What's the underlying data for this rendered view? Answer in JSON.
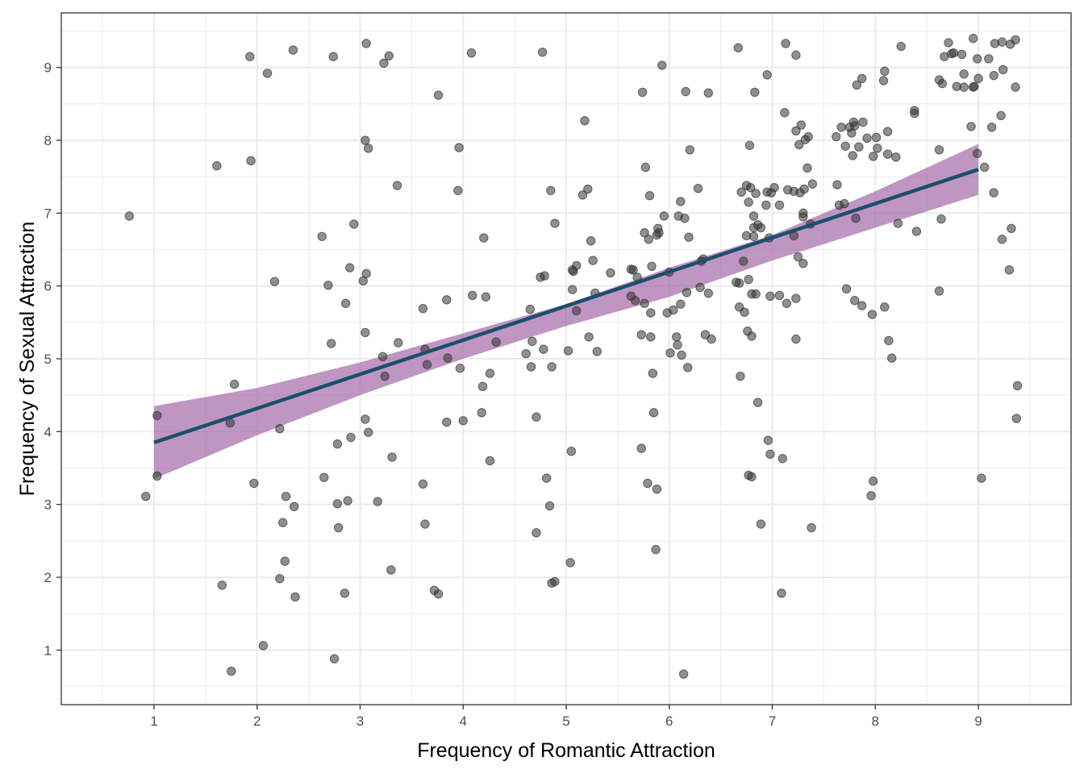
{
  "chart_data": {
    "type": "scatter",
    "title": "",
    "xlabel": "Frequency of Romantic Attraction",
    "ylabel": "Frequency of Sexual Attraction",
    "xlim": [
      0.1,
      9.9
    ],
    "ylim": [
      0.25,
      9.75
    ],
    "x_ticks": [
      1,
      2,
      3,
      4,
      5,
      6,
      7,
      8,
      9
    ],
    "y_ticks": [
      1,
      2,
      3,
      4,
      5,
      6,
      7,
      8,
      9
    ],
    "x_tick_labels": [
      "1",
      "2",
      "3",
      "4",
      "5",
      "6",
      "7",
      "8",
      "9"
    ],
    "y_tick_labels": [
      "1",
      "2",
      "3",
      "4",
      "5",
      "6",
      "7",
      "8",
      "9"
    ],
    "grid": true,
    "legend": "none",
    "colors": {
      "points": "#333333",
      "fit_line": "#1b4f6b",
      "confidence_band": "#a46aa8",
      "grid": "#ebebeb",
      "panel_border": "#333333"
    },
    "fit_line": {
      "x": [
        1,
        9
      ],
      "y": [
        3.85,
        7.6
      ]
    },
    "confidence_band": {
      "x": [
        1,
        2,
        3,
        4,
        5,
        6,
        7,
        8,
        9
      ],
      "lower": [
        3.35,
        3.95,
        4.5,
        5.0,
        5.45,
        5.85,
        6.35,
        6.8,
        7.25
      ],
      "upper": [
        4.35,
        4.6,
        4.95,
        5.35,
        5.75,
        6.25,
        6.7,
        7.3,
        7.95
      ]
    },
    "points": [
      [
        0.76,
        6.96
      ],
      [
        0.92,
        3.11
      ],
      [
        1.03,
        4.22
      ],
      [
        1.03,
        3.39
      ],
      [
        1.61,
        7.65
      ],
      [
        1.66,
        1.89
      ],
      [
        1.74,
        4.12
      ],
      [
        1.75,
        0.71
      ],
      [
        1.78,
        4.65
      ],
      [
        1.93,
        9.15
      ],
      [
        1.94,
        7.72
      ],
      [
        1.97,
        3.29
      ],
      [
        2.06,
        1.06
      ],
      [
        2.1,
        8.92
      ],
      [
        2.17,
        6.06
      ],
      [
        2.22,
        4.04
      ],
      [
        2.22,
        1.98
      ],
      [
        2.25,
        2.75
      ],
      [
        2.27,
        2.22
      ],
      [
        2.28,
        3.11
      ],
      [
        2.35,
        9.24
      ],
      [
        2.36,
        2.97
      ],
      [
        2.37,
        1.73
      ],
      [
        2.63,
        6.68
      ],
      [
        2.65,
        3.37
      ],
      [
        2.69,
        6.01
      ],
      [
        2.72,
        5.21
      ],
      [
        2.74,
        9.15
      ],
      [
        2.75,
        0.88
      ],
      [
        2.78,
        3.01
      ],
      [
        2.78,
        3.83
      ],
      [
        2.79,
        2.68
      ],
      [
        2.85,
        1.78
      ],
      [
        2.86,
        5.76
      ],
      [
        2.88,
        3.05
      ],
      [
        2.9,
        6.25
      ],
      [
        2.91,
        3.92
      ],
      [
        2.94,
        6.85
      ],
      [
        3.03,
        6.07
      ],
      [
        3.05,
        8.0
      ],
      [
        3.05,
        5.36
      ],
      [
        3.05,
        4.17
      ],
      [
        3.06,
        6.17
      ],
      [
        3.06,
        9.33
      ],
      [
        3.08,
        7.89
      ],
      [
        3.08,
        3.99
      ],
      [
        3.17,
        3.04
      ],
      [
        3.22,
        5.03
      ],
      [
        3.23,
        9.06
      ],
      [
        3.24,
        4.76
      ],
      [
        3.28,
        9.16
      ],
      [
        3.3,
        2.1
      ],
      [
        3.31,
        3.65
      ],
      [
        3.36,
        7.38
      ],
      [
        3.37,
        5.22
      ],
      [
        3.61,
        5.69
      ],
      [
        3.61,
        3.28
      ],
      [
        3.63,
        5.13
      ],
      [
        3.63,
        2.73
      ],
      [
        3.65,
        4.92
      ],
      [
        3.72,
        1.82
      ],
      [
        3.76,
        8.62
      ],
      [
        3.76,
        1.77
      ],
      [
        3.84,
        5.81
      ],
      [
        3.84,
        4.13
      ],
      [
        3.85,
        5.01
      ],
      [
        3.95,
        7.31
      ],
      [
        3.96,
        7.9
      ],
      [
        3.97,
        4.87
      ],
      [
        4.0,
        4.15
      ],
      [
        4.08,
        9.2
      ],
      [
        4.09,
        5.87
      ],
      [
        4.18,
        4.26
      ],
      [
        4.19,
        4.62
      ],
      [
        4.2,
        6.66
      ],
      [
        4.22,
        5.85
      ],
      [
        4.26,
        3.6
      ],
      [
        4.26,
        4.8
      ],
      [
        4.32,
        5.23
      ],
      [
        4.61,
        5.07
      ],
      [
        4.65,
        5.68
      ],
      [
        4.66,
        4.89
      ],
      [
        4.67,
        5.24
      ],
      [
        4.71,
        2.61
      ],
      [
        4.71,
        4.2
      ],
      [
        4.75,
        6.12
      ],
      [
        4.77,
        9.21
      ],
      [
        4.78,
        5.13
      ],
      [
        4.79,
        6.14
      ],
      [
        4.81,
        3.36
      ],
      [
        4.84,
        2.98
      ],
      [
        4.85,
        7.31
      ],
      [
        4.86,
        4.89
      ],
      [
        4.86,
        1.92
      ],
      [
        4.89,
        6.86
      ],
      [
        4.89,
        1.94
      ],
      [
        5.02,
        5.11
      ],
      [
        5.04,
        2.2
      ],
      [
        5.05,
        3.73
      ],
      [
        5.06,
        5.95
      ],
      [
        5.06,
        6.22
      ],
      [
        5.07,
        6.2
      ],
      [
        5.1,
        5.66
      ],
      [
        5.1,
        6.28
      ],
      [
        5.16,
        7.25
      ],
      [
        5.18,
        8.27
      ],
      [
        5.21,
        7.33
      ],
      [
        5.22,
        5.3
      ],
      [
        5.24,
        6.62
      ],
      [
        5.26,
        6.35
      ],
      [
        5.28,
        5.9
      ],
      [
        5.3,
        5.1
      ],
      [
        5.43,
        6.18
      ],
      [
        5.63,
        5.86
      ],
      [
        5.63,
        6.23
      ],
      [
        5.65,
        6.22
      ],
      [
        5.67,
        5.8
      ],
      [
        5.69,
        6.12
      ],
      [
        5.73,
        3.77
      ],
      [
        5.73,
        5.33
      ],
      [
        5.74,
        8.66
      ],
      [
        5.76,
        5.76
      ],
      [
        5.76,
        6.73
      ],
      [
        5.77,
        7.63
      ],
      [
        5.79,
        3.29
      ],
      [
        5.8,
        6.64
      ],
      [
        5.81,
        7.24
      ],
      [
        5.82,
        5.63
      ],
      [
        5.82,
        5.3
      ],
      [
        5.83,
        6.27
      ],
      [
        5.84,
        4.8
      ],
      [
        5.85,
        4.26
      ],
      [
        5.87,
        2.38
      ],
      [
        5.88,
        3.21
      ],
      [
        5.88,
        6.7
      ],
      [
        5.89,
        6.79
      ],
      [
        5.9,
        6.73
      ],
      [
        5.93,
        9.03
      ],
      [
        5.95,
        6.96
      ],
      [
        5.98,
        5.63
      ],
      [
        6.0,
        6.19
      ],
      [
        6.01,
        5.08
      ],
      [
        6.04,
        5.67
      ],
      [
        6.07,
        5.3
      ],
      [
        6.08,
        5.19
      ],
      [
        6.09,
        6.96
      ],
      [
        6.11,
        5.75
      ],
      [
        6.11,
        7.16
      ],
      [
        6.12,
        5.05
      ],
      [
        6.14,
        0.67
      ],
      [
        6.15,
        6.93
      ],
      [
        6.16,
        8.67
      ],
      [
        6.17,
        5.91
      ],
      [
        6.18,
        4.88
      ],
      [
        6.19,
        6.67
      ],
      [
        6.2,
        7.87
      ],
      [
        6.28,
        7.34
      ],
      [
        6.3,
        5.98
      ],
      [
        6.31,
        6.34
      ],
      [
        6.33,
        6.37
      ],
      [
        6.35,
        5.33
      ],
      [
        6.38,
        8.65
      ],
      [
        6.38,
        5.9
      ],
      [
        6.41,
        5.27
      ],
      [
        6.65,
        6.05
      ],
      [
        6.67,
        9.27
      ],
      [
        6.68,
        6.04
      ],
      [
        6.68,
        5.71
      ],
      [
        6.69,
        4.76
      ],
      [
        6.7,
        7.29
      ],
      [
        6.72,
        6.34
      ],
      [
        6.73,
        5.64
      ],
      [
        6.75,
        7.38
      ],
      [
        6.75,
        6.69
      ],
      [
        6.76,
        5.38
      ],
      [
        6.77,
        7.15
      ],
      [
        6.77,
        3.4
      ],
      [
        6.77,
        6.09
      ],
      [
        6.78,
        7.93
      ],
      [
        6.79,
        7.35
      ],
      [
        6.8,
        5.89
      ],
      [
        6.8,
        3.38
      ],
      [
        6.8,
        5.31
      ],
      [
        6.82,
        6.68
      ],
      [
        6.82,
        6.8
      ],
      [
        6.82,
        6.96
      ],
      [
        6.83,
        8.66
      ],
      [
        6.84,
        5.89
      ],
      [
        6.84,
        7.27
      ],
      [
        6.86,
        4.4
      ],
      [
        6.86,
        6.84
      ],
      [
        6.89,
        6.8
      ],
      [
        6.89,
        2.73
      ],
      [
        6.94,
        7.11
      ],
      [
        6.95,
        8.9
      ],
      [
        6.95,
        7.29
      ],
      [
        6.96,
        3.88
      ],
      [
        6.97,
        6.66
      ],
      [
        6.98,
        5.86
      ],
      [
        6.98,
        3.69
      ],
      [
        6.99,
        7.28
      ],
      [
        7.02,
        7.35
      ],
      [
        7.07,
        7.11
      ],
      [
        7.07,
        5.87
      ],
      [
        7.09,
        1.78
      ],
      [
        7.1,
        3.63
      ],
      [
        7.12,
        8.38
      ],
      [
        7.13,
        9.33
      ],
      [
        7.14,
        5.76
      ],
      [
        7.15,
        7.32
      ],
      [
        7.21,
        7.3
      ],
      [
        7.21,
        6.69
      ],
      [
        7.23,
        9.17
      ],
      [
        7.23,
        5.83
      ],
      [
        7.23,
        5.27
      ],
      [
        7.23,
        8.13
      ],
      [
        7.25,
        6.4
      ],
      [
        7.26,
        7.94
      ],
      [
        7.27,
        7.28
      ],
      [
        7.28,
        8.21
      ],
      [
        7.3,
        6.95
      ],
      [
        7.3,
        6.31
      ],
      [
        7.3,
        7.0
      ],
      [
        7.31,
        7.33
      ],
      [
        7.32,
        8.01
      ],
      [
        7.34,
        7.62
      ],
      [
        7.35,
        8.05
      ],
      [
        7.37,
        6.85
      ],
      [
        7.38,
        2.68
      ],
      [
        7.39,
        7.4
      ],
      [
        7.62,
        8.05
      ],
      [
        7.63,
        7.39
      ],
      [
        7.65,
        7.11
      ],
      [
        7.67,
        8.18
      ],
      [
        7.7,
        7.13
      ],
      [
        7.71,
        7.92
      ],
      [
        7.72,
        5.96
      ],
      [
        7.75,
        8.18
      ],
      [
        7.77,
        8.1
      ],
      [
        7.78,
        7.79
      ],
      [
        7.79,
        8.25
      ],
      [
        7.8,
        5.8
      ],
      [
        7.8,
        8.2
      ],
      [
        7.81,
        6.93
      ],
      [
        7.82,
        8.76
      ],
      [
        7.84,
        7.91
      ],
      [
        7.87,
        5.73
      ],
      [
        7.87,
        8.85
      ],
      [
        7.88,
        8.25
      ],
      [
        7.92,
        8.03
      ],
      [
        7.96,
        3.12
      ],
      [
        7.97,
        5.61
      ],
      [
        7.98,
        3.32
      ],
      [
        7.98,
        7.78
      ],
      [
        8.01,
        8.04
      ],
      [
        8.02,
        7.89
      ],
      [
        8.08,
        8.82
      ],
      [
        8.09,
        8.95
      ],
      [
        8.09,
        5.71
      ],
      [
        8.12,
        7.81
      ],
      [
        8.12,
        8.12
      ],
      [
        8.13,
        5.25
      ],
      [
        8.16,
        5.01
      ],
      [
        8.2,
        7.77
      ],
      [
        8.22,
        6.86
      ],
      [
        8.25,
        9.29
      ],
      [
        8.38,
        8.41
      ],
      [
        8.38,
        8.37
      ],
      [
        8.4,
        6.75
      ],
      [
        8.62,
        5.93
      ],
      [
        8.62,
        7.87
      ],
      [
        8.62,
        8.83
      ],
      [
        8.64,
        6.92
      ],
      [
        8.65,
        8.78
      ],
      [
        8.67,
        9.15
      ],
      [
        8.71,
        9.34
      ],
      [
        8.74,
        9.19
      ],
      [
        8.76,
        9.2
      ],
      [
        8.79,
        8.74
      ],
      [
        8.84,
        9.18
      ],
      [
        8.86,
        8.91
      ],
      [
        8.86,
        8.73
      ],
      [
        8.93,
        8.19
      ],
      [
        8.95,
        9.4
      ],
      [
        8.95,
        8.73
      ],
      [
        8.96,
        8.74
      ],
      [
        8.99,
        7.82
      ],
      [
        8.99,
        9.12
      ],
      [
        9.0,
        8.85
      ],
      [
        9.03,
        3.36
      ],
      [
        9.06,
        7.63
      ],
      [
        9.1,
        9.12
      ],
      [
        9.13,
        8.18
      ],
      [
        9.15,
        8.89
      ],
      [
        9.15,
        7.28
      ],
      [
        9.16,
        9.33
      ],
      [
        9.22,
        8.34
      ],
      [
        9.23,
        6.64
      ],
      [
        9.23,
        9.35
      ],
      [
        9.24,
        8.97
      ],
      [
        9.3,
        6.22
      ],
      [
        9.31,
        9.32
      ],
      [
        9.32,
        6.79
      ],
      [
        9.36,
        8.73
      ],
      [
        9.36,
        9.38
      ],
      [
        9.37,
        4.18
      ],
      [
        9.38,
        4.63
      ]
    ]
  }
}
